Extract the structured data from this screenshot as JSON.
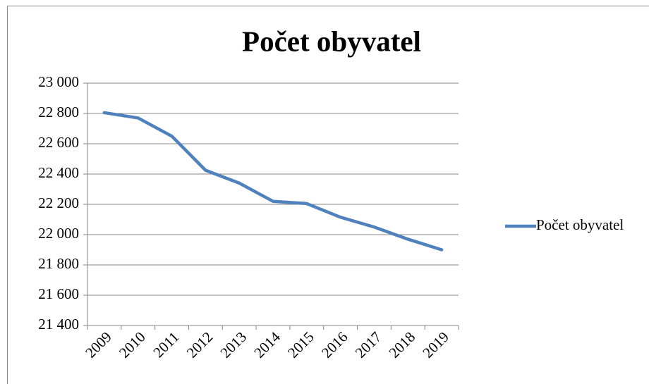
{
  "chart_data": {
    "type": "line",
    "title": "Počet obyvatel",
    "categories": [
      "2009",
      "2010",
      "2011",
      "2012",
      "2013",
      "2014",
      "2015",
      "2016",
      "2017",
      "2018",
      "2019"
    ],
    "series": [
      {
        "name": "Počet obyvatel",
        "color": "#4f81bd",
        "values": [
          22805,
          22770,
          22650,
          22425,
          22340,
          22220,
          22205,
          22115,
          22050,
          21970,
          21900
        ]
      }
    ],
    "ylim": [
      21400,
      23000
    ],
    "yticks": [
      {
        "value": 21400,
        "label": "21 400"
      },
      {
        "value": 21600,
        "label": "21 600"
      },
      {
        "value": 21800,
        "label": "21 800"
      },
      {
        "value": 22000,
        "label": "22 000"
      },
      {
        "value": 22200,
        "label": "22 200"
      },
      {
        "value": 22400,
        "label": "22 400"
      },
      {
        "value": 22600,
        "label": "22 600"
      },
      {
        "value": 22800,
        "label": "22 800"
      },
      {
        "value": 23000,
        "label": "23 000"
      }
    ],
    "grid": true,
    "legend": "right"
  }
}
